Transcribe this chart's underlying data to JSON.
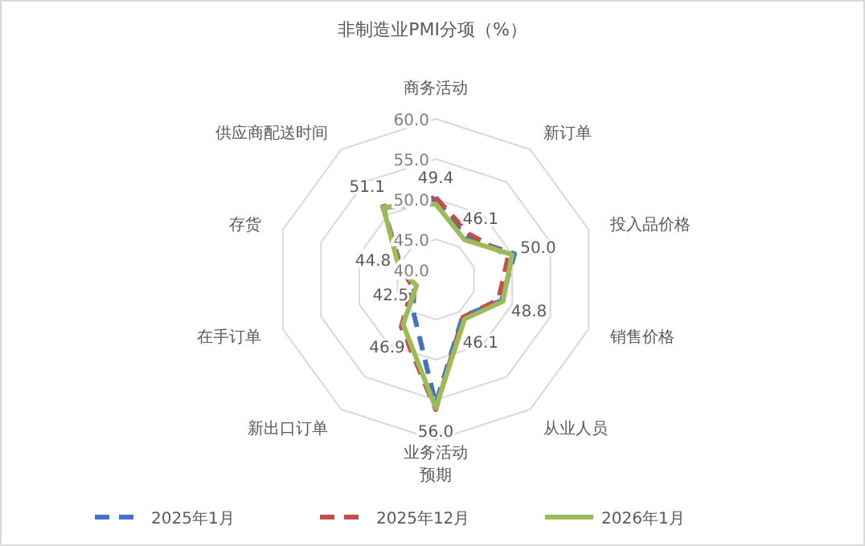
{
  "chart_data": {
    "type": "radar",
    "title": "非制造业PMI分项（%）",
    "categories": [
      "商务活动",
      "新订单",
      "投入品价格",
      "销售价格",
      "从业人员",
      "业务活动预期",
      "新出口订单",
      "在手订单",
      "存货",
      "供应商配送时间"
    ],
    "series": [
      {
        "name": "2025年1月",
        "color": "#4472c4",
        "line_style": "dashed",
        "values": [
          50.0,
          46.4,
          50.3,
          48.6,
          45.7,
          55.5,
          44.8,
          42.8,
          44.6,
          51.0
        ]
      },
      {
        "name": "2025年12月",
        "color": "#c0504d",
        "line_style": "dashed",
        "values": [
          50.2,
          47.0,
          49.5,
          48.2,
          45.8,
          56.2,
          47.3,
          43.0,
          44.5,
          51.2
        ]
      },
      {
        "name": "2026年1月",
        "color": "#9bbb59",
        "line_style": "solid",
        "values": [
          49.4,
          46.1,
          50.0,
          48.8,
          46.1,
          56.0,
          46.9,
          42.5,
          44.8,
          51.1
        ],
        "value_labels": [
          "49.4",
          "46.1",
          "50.0",
          "48.8",
          "46.1",
          "56.0",
          "46.9",
          "42.5",
          "44.8",
          "51.1"
        ]
      }
    ],
    "ylim": [
      40,
      60
    ],
    "yticks": [
      {
        "value": 40,
        "label": "40.0"
      },
      {
        "value": 45,
        "label": "45.0"
      },
      {
        "value": 50,
        "label": "50.0"
      },
      {
        "value": 55,
        "label": "55.0"
      },
      {
        "value": 60,
        "label": "60.0"
      }
    ],
    "grid": true,
    "legend": "bottom"
  }
}
